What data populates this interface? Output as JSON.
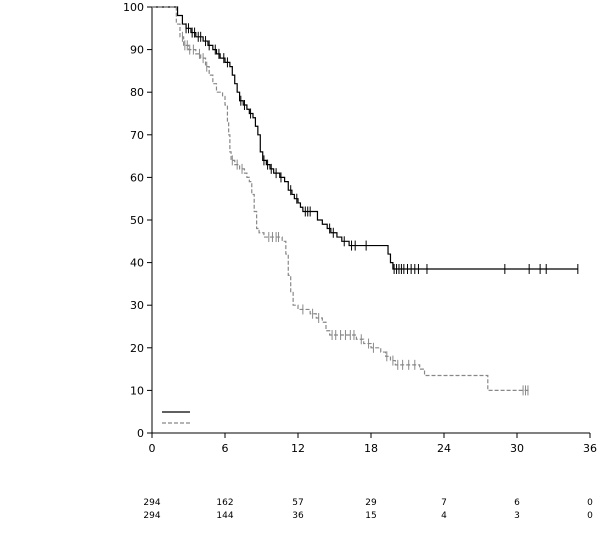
{
  "chart_data": {
    "type": "line",
    "subtype": "kaplan-meier",
    "xlim": [
      0,
      36
    ],
    "ylim": [
      0,
      100
    ],
    "x_ticks": [
      0,
      6,
      12,
      18,
      24,
      30,
      36
    ],
    "y_ticks": [
      0,
      10,
      20,
      30,
      40,
      50,
      60,
      70,
      80,
      90,
      100
    ],
    "grid": false,
    "legend": {
      "position": "bottom-left",
      "entries": [
        "",
        ""
      ]
    },
    "series": [
      {
        "style": "solid",
        "color": "#000000",
        "points": [
          [
            0,
            100
          ],
          [
            1.5,
            100
          ],
          [
            2.1,
            98
          ],
          [
            2.5,
            96
          ],
          [
            2.8,
            95
          ],
          [
            3.2,
            94
          ],
          [
            3.6,
            93
          ],
          [
            4.2,
            92
          ],
          [
            4.6,
            91
          ],
          [
            5,
            90
          ],
          [
            5.3,
            89
          ],
          [
            5.6,
            88
          ],
          [
            6,
            87
          ],
          [
            6.4,
            86
          ],
          [
            6.6,
            84
          ],
          [
            6.8,
            82
          ],
          [
            7,
            80
          ],
          [
            7.2,
            78
          ],
          [
            7.5,
            77
          ],
          [
            7.8,
            76
          ],
          [
            8,
            75
          ],
          [
            8.3,
            74
          ],
          [
            8.5,
            72
          ],
          [
            8.7,
            70
          ],
          [
            8.9,
            66
          ],
          [
            9.1,
            64
          ],
          [
            9.4,
            63
          ],
          [
            9.7,
            62
          ],
          [
            10,
            61
          ],
          [
            10.5,
            60
          ],
          [
            10.9,
            59
          ],
          [
            11.2,
            57
          ],
          [
            11.5,
            56
          ],
          [
            11.7,
            55
          ],
          [
            12,
            54
          ],
          [
            12.2,
            53
          ],
          [
            12.4,
            52
          ],
          [
            13.2,
            52
          ],
          [
            13.6,
            50
          ],
          [
            14,
            49
          ],
          [
            14.4,
            48
          ],
          [
            14.7,
            47
          ],
          [
            15.2,
            46
          ],
          [
            15.6,
            45
          ],
          [
            16.2,
            44
          ],
          [
            19.2,
            44
          ],
          [
            19.4,
            42
          ],
          [
            19.6,
            40
          ],
          [
            19.8,
            38.5
          ],
          [
            35,
            38.5
          ]
        ],
        "censored": [
          2.8,
          3.0,
          3.3,
          3.5,
          3.8,
          4.0,
          4.4,
          4.7,
          5.2,
          5.5,
          5.9,
          6.2,
          7.3,
          7.6,
          8.1,
          9.2,
          9.5,
          9.8,
          10.2,
          10.6,
          11.4,
          11.9,
          12.6,
          12.8,
          13.0,
          14.6,
          14.9,
          15.8,
          16.4,
          16.7,
          17.6,
          19.9,
          20.1,
          20.3,
          20.5,
          20.7,
          21.0,
          21.3,
          21.6,
          21.9,
          22.6,
          29,
          31,
          31.9,
          32.4,
          35
        ]
      },
      {
        "style": "dashed",
        "color": "#888888",
        "points": [
          [
            0,
            100
          ],
          [
            1.5,
            100
          ],
          [
            2,
            96
          ],
          [
            2.3,
            93
          ],
          [
            2.6,
            91
          ],
          [
            3,
            90
          ],
          [
            3.6,
            89
          ],
          [
            4,
            88
          ],
          [
            4.4,
            86
          ],
          [
            4.7,
            84
          ],
          [
            5,
            82
          ],
          [
            5.3,
            80
          ],
          [
            5.8,
            79
          ],
          [
            6,
            77
          ],
          [
            6.2,
            73
          ],
          [
            6.3,
            70
          ],
          [
            6.4,
            66
          ],
          [
            6.5,
            64
          ],
          [
            6.8,
            63
          ],
          [
            7.2,
            62
          ],
          [
            7.6,
            61
          ],
          [
            7.8,
            60
          ],
          [
            8,
            59
          ],
          [
            8.2,
            56
          ],
          [
            8.4,
            52
          ],
          [
            8.6,
            48
          ],
          [
            8.8,
            47
          ],
          [
            9.2,
            46
          ],
          [
            10.5,
            46
          ],
          [
            10.7,
            45
          ],
          [
            11,
            42
          ],
          [
            11.2,
            37
          ],
          [
            11.4,
            33
          ],
          [
            11.6,
            30
          ],
          [
            12,
            29
          ],
          [
            12.8,
            29
          ],
          [
            13,
            28
          ],
          [
            13.5,
            27
          ],
          [
            14,
            26
          ],
          [
            14.3,
            24
          ],
          [
            14.6,
            23
          ],
          [
            16.5,
            23
          ],
          [
            16.8,
            22
          ],
          [
            17.4,
            21
          ],
          [
            18,
            20
          ],
          [
            18.8,
            19
          ],
          [
            19.2,
            18
          ],
          [
            19.6,
            17
          ],
          [
            20,
            16
          ],
          [
            21.8,
            16
          ],
          [
            22,
            15
          ],
          [
            22.4,
            13.5
          ],
          [
            27.4,
            13.5
          ],
          [
            27.6,
            10
          ],
          [
            31,
            10
          ]
        ],
        "censored": [
          2.5,
          2.7,
          2.9,
          3.1,
          3.4,
          3.9,
          4.2,
          4.5,
          6.6,
          7.0,
          7.4,
          9.6,
          9.9,
          10.2,
          10.4,
          12.4,
          13.2,
          13.7,
          14.8,
          15.1,
          15.5,
          15.9,
          16.3,
          16.6,
          17.2,
          17.8,
          18.2,
          19.3,
          19.8,
          20.2,
          20.6,
          21.1,
          21.6,
          30.5,
          30.7,
          30.9
        ]
      }
    ],
    "at_risk": {
      "times": [
        0,
        6,
        12,
        18,
        24,
        30,
        36
      ],
      "rows": [
        [
          "294",
          "162",
          "57",
          "29",
          "7",
          "6",
          "0"
        ],
        [
          "294",
          "144",
          "36",
          "15",
          "4",
          "3",
          "0"
        ]
      ]
    }
  }
}
